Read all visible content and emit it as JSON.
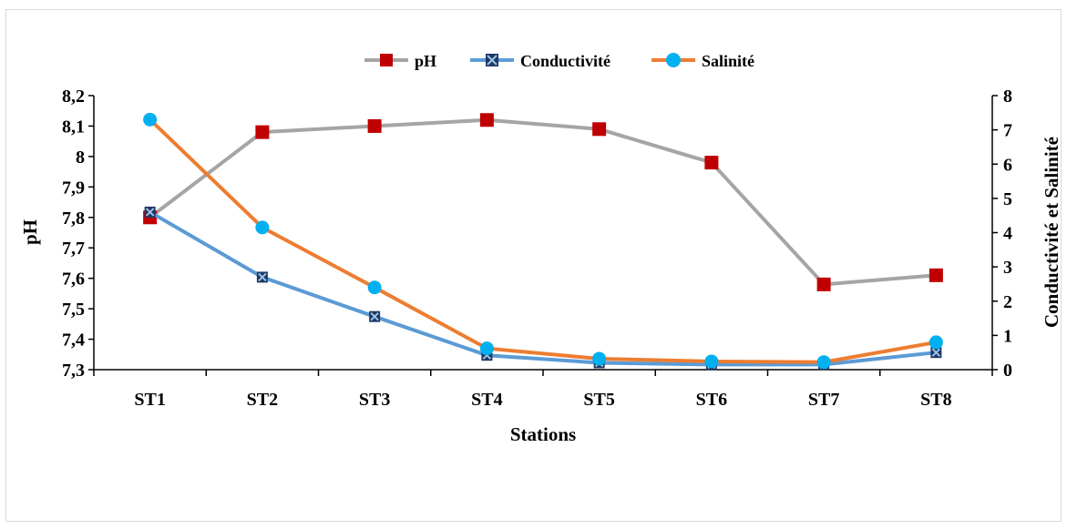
{
  "chart_data": {
    "type": "line",
    "categories": [
      "ST1",
      "ST2",
      "ST3",
      "ST4",
      "ST5",
      "ST6",
      "ST7",
      "ST8"
    ],
    "xlabel": "Stations",
    "ylabel": "pH",
    "y2label": "Conductivité et Salinité",
    "ylim": [
      7.3,
      8.2
    ],
    "y2lim": [
      0,
      8
    ],
    "y_ticks": [
      "7,3",
      "7,4",
      "7,5",
      "7,6",
      "7,7",
      "7,8",
      "7,9",
      "8",
      "8,1",
      "8,2"
    ],
    "y2_ticks": [
      "0",
      "1",
      "2",
      "3",
      "4",
      "5",
      "6",
      "7",
      "8"
    ],
    "grid": false,
    "legend_position": "top",
    "series": [
      {
        "name": "pH",
        "axis": "left",
        "color": "#a5a5a5",
        "marker": "square",
        "marker_color": "#c00000",
        "values": [
          7.8,
          8.08,
          8.1,
          8.12,
          8.09,
          7.98,
          7.58,
          7.61
        ]
      },
      {
        "name": "Conductivité",
        "axis": "right",
        "color": "#5b9bd5",
        "marker": "x-square",
        "marker_color": "#1f3864",
        "values": [
          4.6,
          2.7,
          1.55,
          0.42,
          0.2,
          0.15,
          0.15,
          0.5
        ]
      },
      {
        "name": "Salinité",
        "axis": "right",
        "color": "#ed7d31",
        "marker": "circle",
        "marker_color": "#00b0f0",
        "values": [
          7.3,
          4.15,
          2.4,
          0.62,
          0.32,
          0.24,
          0.22,
          0.8
        ]
      }
    ]
  }
}
